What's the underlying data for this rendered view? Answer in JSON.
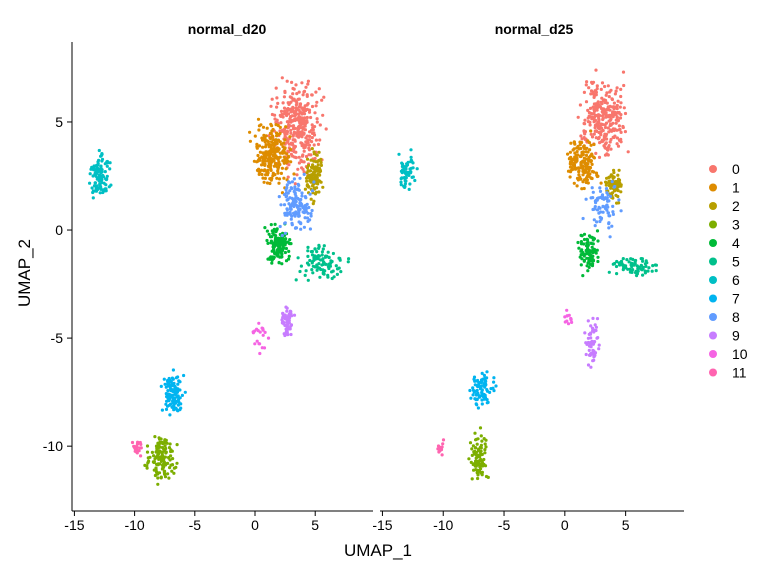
{
  "chart_data": {
    "type": "scatter",
    "title": "",
    "xlabel": "UMAP_1",
    "ylabel": "UMAP_2",
    "xlim": [
      -15.2,
      9.8
    ],
    "ylim": [
      -13.0,
      8.7
    ],
    "x_ticks": [
      -15,
      -10,
      -5,
      0,
      5
    ],
    "x_tick_labels": [
      "-15",
      "-10",
      "-5",
      "0",
      "5"
    ],
    "y_ticks": [
      5,
      0,
      -5,
      -10
    ],
    "y_tick_labels": [
      "5",
      "0",
      "-5",
      "-10"
    ],
    "grid": false,
    "legend_position": "right",
    "legend": {
      "entries": [
        "0",
        "1",
        "2",
        "3",
        "4",
        "5",
        "6",
        "7",
        "8",
        "9",
        "10",
        "11"
      ],
      "colors": [
        "#F8766D",
        "#DE8C00",
        "#B79F00",
        "#7CAE00",
        "#00BA38",
        "#00C08B",
        "#00BFC4",
        "#00B4F0",
        "#619CFF",
        "#C77CFF",
        "#F564E3",
        "#FF64B0"
      ]
    },
    "panels": [
      {
        "title": "normal_d20",
        "clusters": [
          {
            "cluster": "0",
            "x": [
              0.8,
              6.2
            ],
            "y": [
              2.0,
              7.6
            ],
            "n": 330
          },
          {
            "cluster": "1",
            "x": [
              -0.8,
              3.6
            ],
            "y": [
              1.4,
              5.4
            ],
            "n": 230
          },
          {
            "cluster": "2",
            "x": [
              4.0,
              5.8
            ],
            "y": [
              1.0,
              4.0
            ],
            "n": 110
          },
          {
            "cluster": "3",
            "x": [
              -9.4,
              -6.2
            ],
            "y": [
              -12.0,
              -9.0
            ],
            "n": 130
          },
          {
            "cluster": "4",
            "x": [
              0.6,
              3.4
            ],
            "y": [
              -2.0,
              0.6
            ],
            "n": 130
          },
          {
            "cluster": "5",
            "x": [
              2.8,
              8.3
            ],
            "y": [
              -2.6,
              -0.5
            ],
            "n": 100
          },
          {
            "cluster": "6",
            "x": [
              -14.0,
              -11.8
            ],
            "y": [
              1.2,
              4.1
            ],
            "n": 110
          },
          {
            "cluster": "7",
            "x": [
              -8.0,
              -5.6
            ],
            "y": [
              -9.0,
              -6.2
            ],
            "n": 120
          },
          {
            "cluster": "8",
            "x": [
              1.6,
              5.2
            ],
            "y": [
              -0.6,
              2.8
            ],
            "n": 140
          },
          {
            "cluster": "9",
            "x": [
              2.0,
              3.4
            ],
            "y": [
              -5.1,
              -3.3
            ],
            "n": 60
          },
          {
            "cluster": "10",
            "x": [
              -0.4,
              1.6
            ],
            "y": [
              -6.8,
              -3.6
            ],
            "n": 20
          },
          {
            "cluster": "11",
            "x": [
              -10.4,
              -9.2
            ],
            "y": [
              -10.6,
              -9.6
            ],
            "n": 25
          }
        ]
      },
      {
        "title": "normal_d25",
        "clusters": [
          {
            "cluster": "0",
            "x": [
              0.6,
              5.8
            ],
            "y": [
              2.6,
              7.8
            ],
            "n": 270
          },
          {
            "cluster": "1",
            "x": [
              -0.3,
              3.2
            ],
            "y": [
              1.5,
              4.8
            ],
            "n": 160
          },
          {
            "cluster": "2",
            "x": [
              3.0,
              5.0
            ],
            "y": [
              1.0,
              3.2
            ],
            "n": 70
          },
          {
            "cluster": "3",
            "x": [
              -8.0,
              -6.2
            ],
            "y": [
              -12.0,
              -9.0
            ],
            "n": 90
          },
          {
            "cluster": "4",
            "x": [
              0.8,
              3.0
            ],
            "y": [
              -2.2,
              0.2
            ],
            "n": 90
          },
          {
            "cluster": "5",
            "x": [
              3.2,
              8.3
            ],
            "y": [
              -2.3,
              -1.1
            ],
            "n": 75
          },
          {
            "cluster": "6",
            "x": [
              -14.0,
              -12.0
            ],
            "y": [
              1.4,
              4.2
            ],
            "n": 55
          },
          {
            "cluster": "7",
            "x": [
              -8.0,
              -5.5
            ],
            "y": [
              -8.6,
              -6.2
            ],
            "n": 80
          },
          {
            "cluster": "8",
            "x": [
              1.2,
              5.2
            ],
            "y": [
              -0.6,
              2.7
            ],
            "n": 75
          },
          {
            "cluster": "9",
            "x": [
              1.4,
              3.2
            ],
            "y": [
              -7.0,
              -3.5
            ],
            "n": 55
          },
          {
            "cluster": "10",
            "x": [
              -0.2,
              0.8
            ],
            "y": [
              -4.6,
              -3.7
            ],
            "n": 12
          },
          {
            "cluster": "11",
            "x": [
              -10.6,
              -9.8
            ],
            "y": [
              -10.6,
              -9.6
            ],
            "n": 15
          }
        ]
      }
    ]
  }
}
